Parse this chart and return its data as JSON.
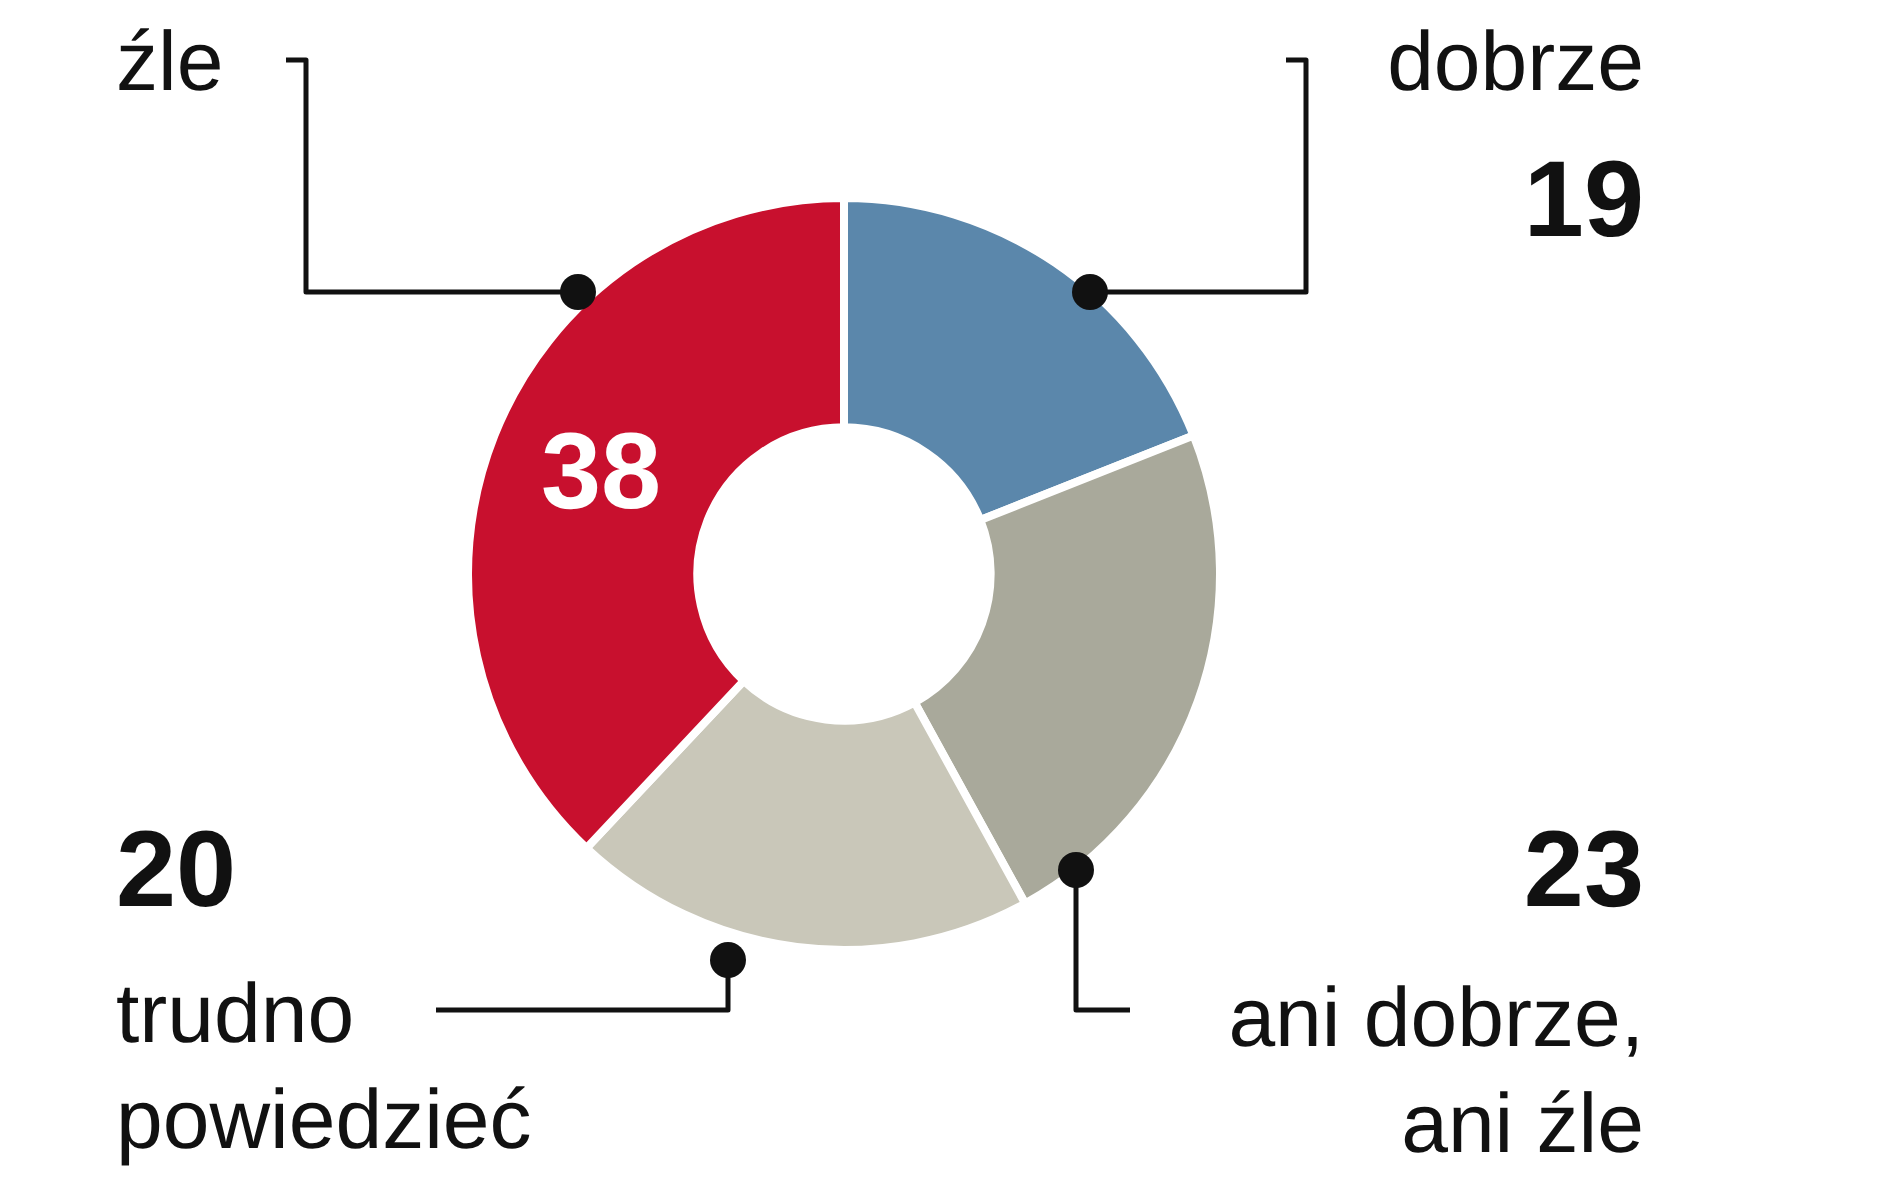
{
  "chart_data": {
    "type": "donut",
    "categories": [
      "dobrze",
      "ani dobrze, ani źle",
      "trudno powiedzieć",
      "źle"
    ],
    "values": [
      19,
      23,
      20,
      38
    ],
    "colors": [
      "#5b87ab",
      "#a9a99b",
      "#c9c7b9",
      "#c8102e"
    ],
    "data_labels": true,
    "legend": false
  }
}
